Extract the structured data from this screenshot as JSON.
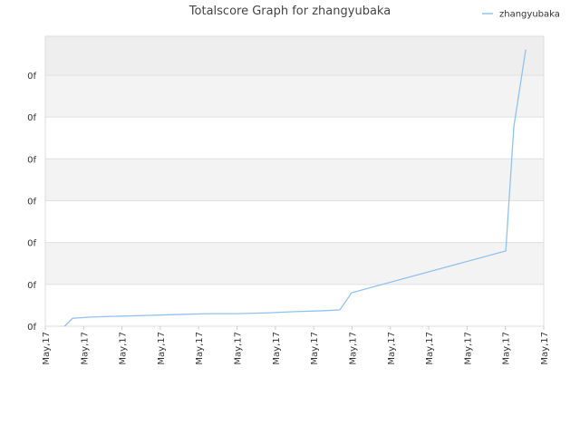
{
  "chart_data": {
    "type": "line",
    "title": "Totalscore Graph for zhangyubaka",
    "x": [
      0.5,
      0.71,
      1.18,
      1.89,
      2.72,
      3.43,
      4.26,
      4.96,
      5.79,
      6.5,
      7.21,
      7.68,
      7.99,
      12.01,
      12.22,
      12.53
    ],
    "series": [
      {
        "name": "zhangyubaka",
        "color": "#90c2f0",
        "values": [
          0,
          0.19,
          0.22,
          0.24,
          0.26,
          0.28,
          0.3,
          0.3,
          0.32,
          0.35,
          0.37,
          0.39,
          0.8,
          1.8,
          4.77,
          6.61
        ]
      }
    ],
    "xlim": [
      0,
      13
    ],
    "xticks": [
      {
        "value": 0,
        "label": "May,17"
      },
      {
        "value": 1,
        "label": "May,17"
      },
      {
        "value": 2,
        "label": "May,17"
      },
      {
        "value": 3,
        "label": "May,17"
      },
      {
        "value": 4,
        "label": "May,17"
      },
      {
        "value": 5,
        "label": "May,17"
      },
      {
        "value": 6,
        "label": "May,17"
      },
      {
        "value": 7,
        "label": "May,17"
      },
      {
        "value": 8,
        "label": "May,17"
      },
      {
        "value": 9,
        "label": "May,17"
      },
      {
        "value": 10,
        "label": "May,17"
      },
      {
        "value": 11,
        "label": "May,17"
      },
      {
        "value": 12,
        "label": "May,17"
      },
      {
        "value": 13,
        "label": "May,17"
      }
    ],
    "ylim": [
      0,
      6.93
    ],
    "yticks": [
      {
        "value": 0,
        "label": "0f"
      },
      {
        "value": 1,
        "label": "0f"
      },
      {
        "value": 2,
        "label": "0f"
      },
      {
        "value": 3,
        "label": "0f"
      },
      {
        "value": 4,
        "label": "0f"
      },
      {
        "value": 5,
        "label": "0f"
      },
      {
        "value": 6,
        "label": "0f"
      }
    ],
    "grid": true,
    "legend": "top-right"
  }
}
